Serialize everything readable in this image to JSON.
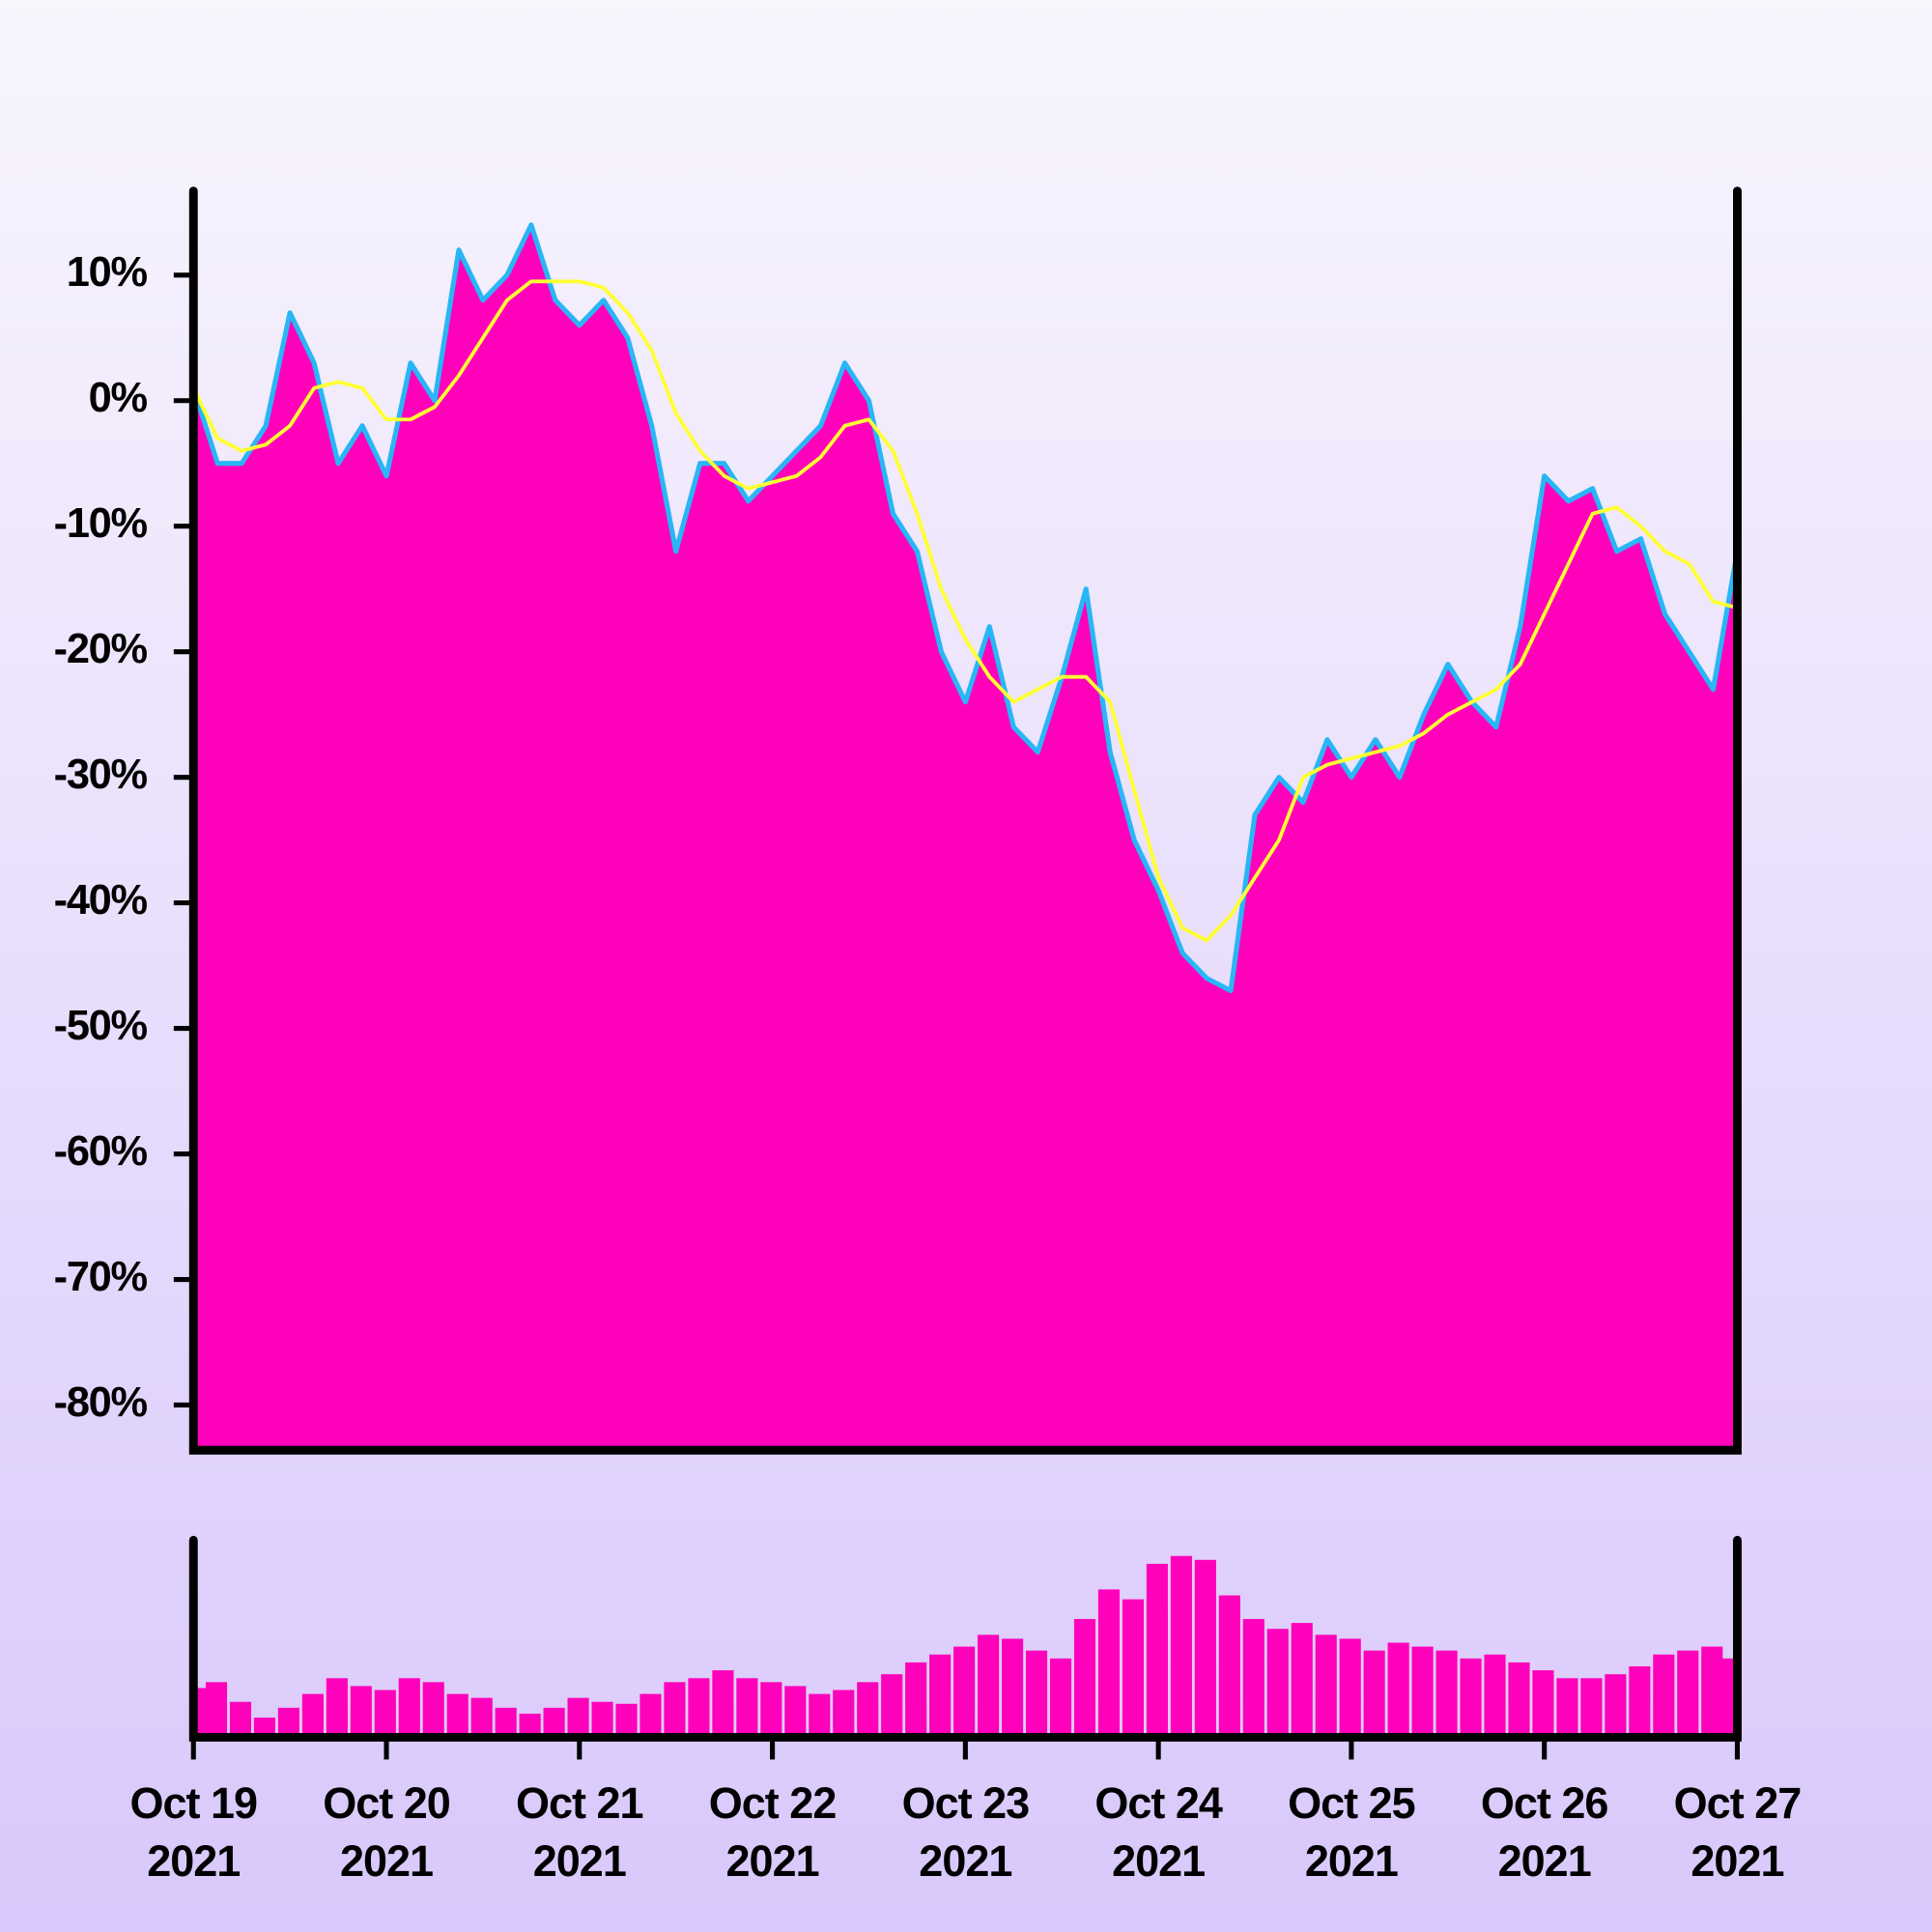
{
  "chart_data": [
    {
      "type": "area",
      "xlim": [
        "2021-10-19",
        "2021-10-27"
      ],
      "ylim": [
        -83.6,
        16.7
      ],
      "yticks": [
        {
          "value": 10,
          "label": "10%"
        },
        {
          "value": 0,
          "label": "0%"
        },
        {
          "value": -10,
          "label": "-10%"
        },
        {
          "value": -20,
          "label": "-20%"
        },
        {
          "value": -30,
          "label": "-30%"
        },
        {
          "value": -40,
          "label": "-40%"
        },
        {
          "value": -50,
          "label": "-50%"
        },
        {
          "value": -60,
          "label": "-60%"
        },
        {
          "value": -70,
          "label": "-70%"
        },
        {
          "value": -80,
          "label": "-80%"
        }
      ],
      "series": [
        {
          "color": "#29b6f6",
          "fill": "#ff00bb",
          "values": [
            1,
            -5,
            -5,
            -2,
            7,
            3,
            -5,
            -2,
            -6,
            3,
            0,
            12,
            8,
            10,
            14,
            8,
            6,
            8,
            5,
            -2,
            -12,
            -5,
            -5,
            -8,
            -6,
            -4,
            -2,
            3,
            0,
            -9,
            -12,
            -20,
            -24,
            -18,
            -26,
            -28,
            -22,
            -15,
            -28,
            -35,
            -39,
            -44,
            -46,
            -47,
            -33,
            -30,
            -32,
            -27,
            -30,
            -27,
            -30,
            -25,
            -21,
            -24,
            -26,
            -18,
            -6,
            -8,
            -7,
            -12,
            -11,
            -17,
            -20,
            -23,
            -12
          ]
        },
        {
          "color": "#ffff33",
          "values": [
            1,
            -3,
            -4,
            -3.5,
            -2,
            1,
            1.5,
            1,
            -1.5,
            -1.5,
            -0.5,
            2,
            5,
            8,
            9.5,
            9.5,
            9.5,
            9,
            7,
            4,
            -1,
            -4,
            -6,
            -7,
            -6.5,
            -6,
            -4.5,
            -2,
            -1.5,
            -4,
            -9,
            -15,
            -19,
            -22,
            -24,
            -23,
            -22,
            -22,
            -24,
            -31,
            -38,
            -42,
            -43,
            -41,
            -38,
            -35,
            -30,
            -29,
            -28.5,
            -28,
            -27.5,
            -26.5,
            -25,
            -24,
            -23,
            -21,
            -17,
            -13,
            -9,
            -8.5,
            -10,
            -12,
            -13,
            -16,
            -16.5
          ]
        }
      ]
    },
    {
      "type": "bar",
      "xlim": [
        "2021-10-19",
        "2021-10-27"
      ],
      "ylim": [
        0,
        100
      ],
      "xticks": [
        {
          "value": "2021-10-19",
          "label": "Oct 19\n2021"
        },
        {
          "value": "2021-10-20",
          "label": "Oct 20\n2021"
        },
        {
          "value": "2021-10-21",
          "label": "Oct 21\n2021"
        },
        {
          "value": "2021-10-22",
          "label": "Oct 22\n2021"
        },
        {
          "value": "2021-10-23",
          "label": "Oct 23\n2021"
        },
        {
          "value": "2021-10-24",
          "label": "Oct 24\n2021"
        },
        {
          "value": "2021-10-25",
          "label": "Oct 25\n2021"
        },
        {
          "value": "2021-10-26",
          "label": "Oct 26\n2021"
        },
        {
          "value": "2021-10-27",
          "label": "Oct 27\n2021"
        }
      ],
      "color": "#ff00bb",
      "values": [
        25,
        28,
        18,
        10,
        15,
        22,
        30,
        26,
        24,
        30,
        28,
        22,
        20,
        15,
        12,
        15,
        20,
        18,
        17,
        22,
        28,
        30,
        34,
        30,
        28,
        26,
        22,
        24,
        28,
        32,
        38,
        42,
        46,
        52,
        50,
        44,
        40,
        60,
        75,
        70,
        88,
        92,
        90,
        72,
        60,
        55,
        58,
        52,
        50,
        44,
        48,
        46,
        44,
        40,
        42,
        38,
        34,
        30,
        30,
        32,
        36,
        42,
        44,
        46,
        40
      ]
    }
  ]
}
